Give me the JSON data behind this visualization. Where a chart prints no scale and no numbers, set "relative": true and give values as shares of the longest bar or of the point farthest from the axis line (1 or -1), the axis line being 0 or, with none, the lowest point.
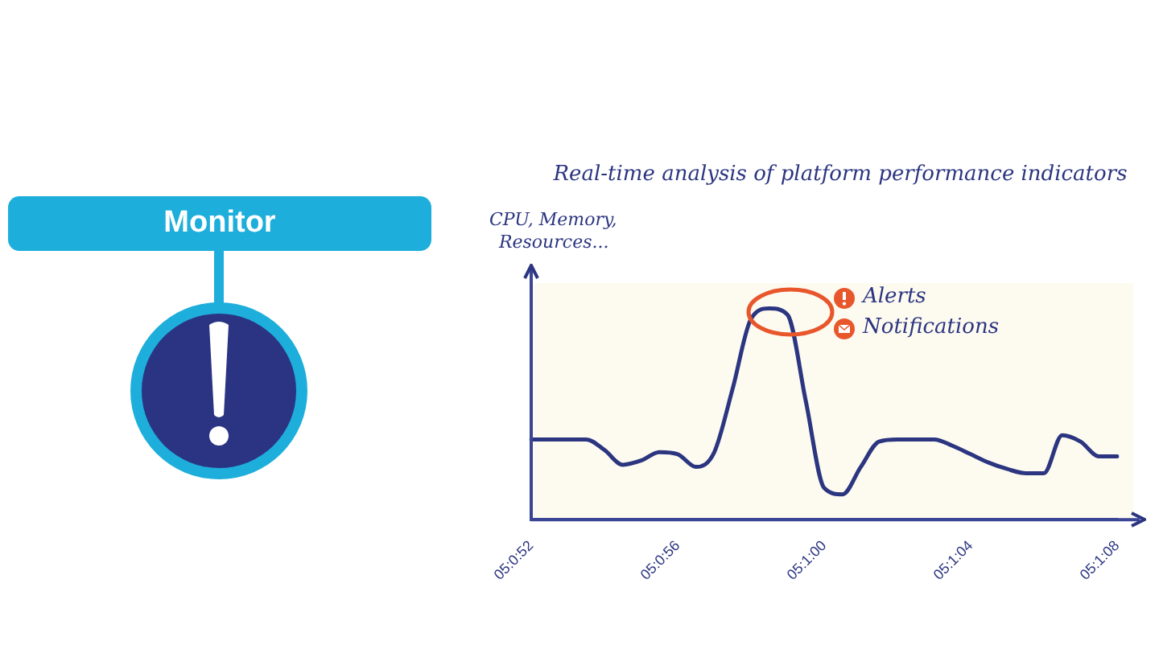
{
  "chart_data": {
    "type": "line",
    "title": "Real-time analysis of platform performance indicators",
    "ylabel": "CPU, Memory, Resources...",
    "relative": true,
    "categories": [
      "05:0:52",
      null,
      null,
      null,
      null,
      null,
      null,
      null,
      "05:0:56",
      null,
      null,
      null,
      null,
      null,
      null,
      null,
      "05:1:00",
      null,
      null,
      null,
      null,
      null,
      null,
      null,
      "05:1:04",
      null,
      null,
      null,
      null,
      null,
      null,
      null,
      "05:1:08"
    ],
    "series": [
      {
        "color": "#2b3580",
        "values": [
          0.38,
          0.38,
          0.38,
          0.38,
          0.33,
          0.26,
          0.28,
          0.32,
          0.31,
          0.25,
          0.32,
          0.62,
          0.95,
          1.0,
          0.97,
          0.56,
          0.15,
          0.12,
          0.25,
          0.37,
          0.38,
          0.38,
          0.38,
          0.35,
          0.31,
          0.27,
          0.24,
          0.22,
          0.22,
          0.4,
          0.37,
          0.3,
          0.3
        ]
      }
    ],
    "annotations": [
      "Monitor",
      "Alerts",
      "Notifications"
    ],
    "marker": "none",
    "line_style": "solid",
    "grid": false,
    "legend": false
  }
}
